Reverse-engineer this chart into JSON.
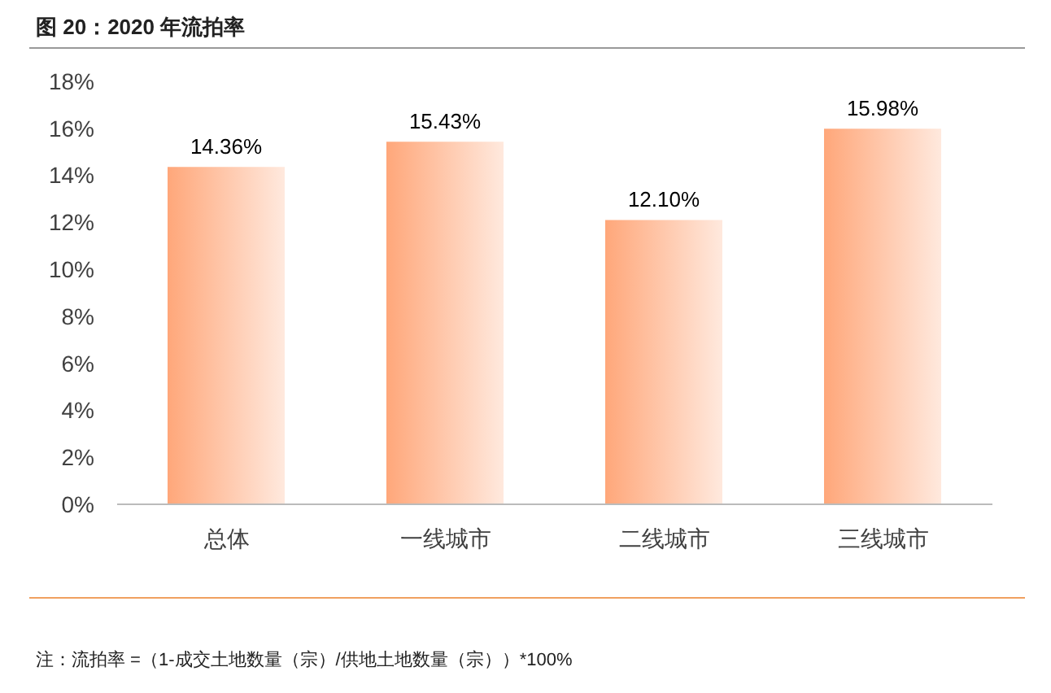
{
  "chart_data": {
    "type": "bar",
    "title": "图 20：2020 年流拍率",
    "categories": [
      "总体",
      "一线城市",
      "二线城市",
      "三线城市"
    ],
    "values": [
      14.36,
      15.43,
      12.1,
      15.98
    ],
    "value_labels": [
      "14.36%",
      "15.43%",
      "12.10%",
      "15.98%"
    ],
    "color": "#ffa77a",
    "ylim": [
      0,
      18
    ],
    "yticks": [
      {
        "value": 0,
        "label": "0%"
      },
      {
        "value": 2,
        "label": "2%"
      },
      {
        "value": 4,
        "label": "4%"
      },
      {
        "value": 6,
        "label": "6%"
      },
      {
        "value": 8,
        "label": "8%"
      },
      {
        "value": 10,
        "label": "10%"
      },
      {
        "value": 12,
        "label": "12%"
      },
      {
        "value": 14,
        "label": "14%"
      },
      {
        "value": 16,
        "label": "16%"
      },
      {
        "value": 18,
        "label": "18%"
      }
    ],
    "grid": false,
    "legend": false,
    "annotations": [
      "注：流拍率 =（1-成交土地数量（宗）/供地土地数量（宗））*100%"
    ]
  }
}
